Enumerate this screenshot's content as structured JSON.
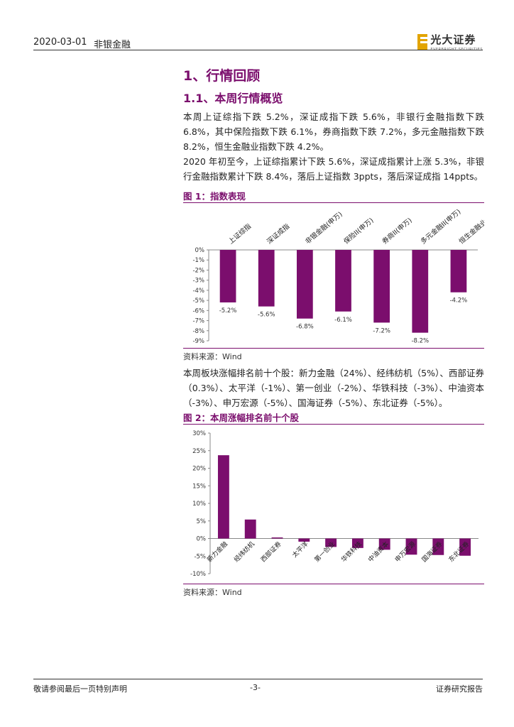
{
  "header": {
    "date": "2020-03-01",
    "category": "非银金融",
    "logo_text": "光大证券",
    "logo_sub": "EVERBRIGHT SECURITIES"
  },
  "section": {
    "h1": "1、行情回顾",
    "h2": "1.1、本周行情概览"
  },
  "paragraphs": {
    "p1": "本周上证综指下跌 5.2%，深证成指下跌 5.6%，非银行金融指数下跌 6.8%，其中保险指数下跌 6.1%，券商指数下跌 7.2%，多元金融指数下跌 8.2%，恒生金融业指数下跌 4.2%。",
    "p2": "2020 年初至今，上证综指累计下跌 5.6%，深证成指累计上涨 5.3%，非银行金融指数累计下跌 8.4%，落后上证指数 3ppts，落后深证成指 14ppts。",
    "p3": "本周板块涨幅排名前十个股：新力金融（24%）、经纬纺机（5%）、西部证券（0.3%）、太平洋（-1%）、第一创业（-2%）、华铁科技（-3%）、中油资本（-3%）、申万宏源（-5%）、国海证券（-5%）、东北证券（-5%）。"
  },
  "figures": {
    "fig1_title": "图 1：指数表现",
    "fig2_title": "图 2：本周涨幅排名前十个股",
    "source1": "资料来源：Wind",
    "source2": "资料来源：Wind"
  },
  "colors": {
    "bar": "#7b0e6d",
    "accent": "#7b0e6d"
  },
  "chart_data": [
    {
      "type": "bar",
      "title": "图 1：指数表现",
      "categories": [
        "上证综指",
        "深证成指",
        "非银金融(申万)",
        "保险II(申万)",
        "券商II(申万)",
        "多元金融II(申万)",
        "恒生金融业"
      ],
      "values": [
        -5.2,
        -5.6,
        -6.8,
        -6.1,
        -7.2,
        -8.2,
        -4.2
      ],
      "value_labels": [
        "-5.2%",
        "-5.6%",
        "-6.8%",
        "-6.1%",
        "-7.2%",
        "-8.2%",
        "-4.2%"
      ],
      "ylim": [
        -9,
        0
      ],
      "yticks": [
        "0%",
        "-1%",
        "-2%",
        "-3%",
        "-4%",
        "-5%",
        "-6%",
        "-7%",
        "-8%",
        "-9%"
      ],
      "category_position": "top",
      "grid": false
    },
    {
      "type": "bar",
      "title": "图 2：本周涨幅排名前十个股",
      "categories": [
        "新力金融",
        "经纬纺机",
        "西部证券",
        "太平洋",
        "第一创业",
        "华铁科技",
        "中油资本",
        "申万宏源",
        "国海证券",
        "东北证券"
      ],
      "values": [
        23.7,
        5.4,
        0.3,
        -0.9,
        -2.4,
        -2.7,
        -3.2,
        -4.6,
        -4.7,
        -4.9
      ],
      "ylim": [
        -10,
        30
      ],
      "yticks": [
        "30%",
        "25%",
        "20%",
        "15%",
        "10%",
        "5%",
        "0%",
        "-5%",
        "-10%"
      ],
      "grid": false
    }
  ],
  "footer": {
    "left": "敬请参阅最后一页特别声明",
    "page": "-3-",
    "right": "证券研究报告"
  }
}
